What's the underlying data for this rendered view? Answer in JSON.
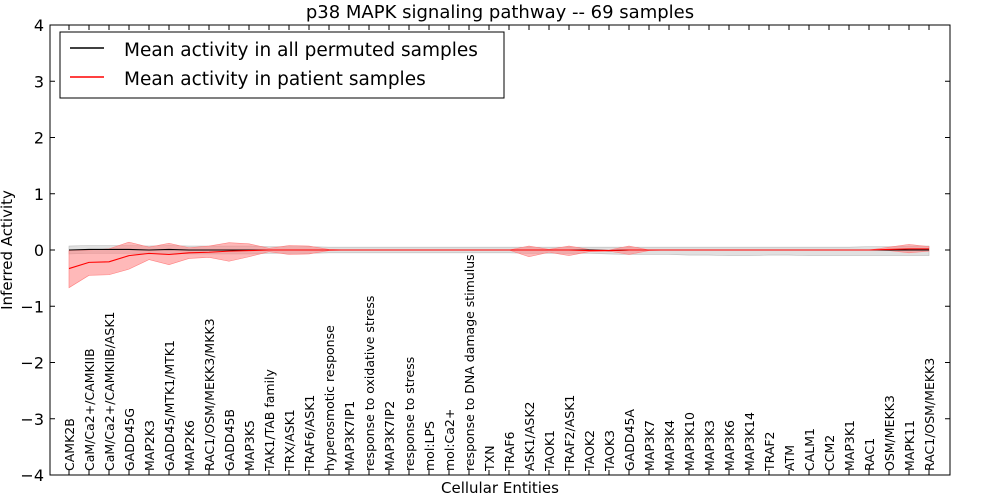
{
  "chart_data": {
    "type": "line",
    "title": "p38 MAPK signaling pathway -- 69 samples",
    "xlabel": "Cellular Entities",
    "ylabel": "Inferred Activity",
    "ylim": [
      -4,
      4
    ],
    "yticks": [
      "4",
      "3",
      "2",
      "1",
      "0",
      "−1",
      "−2",
      "−3",
      "−4"
    ],
    "ytick_values": [
      4,
      3,
      2,
      1,
      0,
      -1,
      -2,
      -3,
      -4
    ],
    "grid": false,
    "legend_position": "top-left",
    "categories": [
      "CAMK2B",
      "CaM/Ca2+/CAMKIIB",
      "CaM/Ca2+/CAMKIIB/ASK1",
      "GADD45G",
      "MAP2K3",
      "GADD45/MTK1/MTK1",
      "MAP2K6",
      "RAC1/OSM/MEKK3/MKK3",
      "GADD45B",
      "MAP3K5",
      "TAK1/TAB family",
      "TRX/ASK1",
      "TRAF6/ASK1",
      "hyperosmotic response",
      "MAP3K7IP1",
      "response to oxidative stress",
      "MAP3K7IP2",
      "response to stress",
      "mol:LPS",
      "mol:Ca2+",
      "response to DNA damage stimulus",
      "TXN",
      "TRAF6",
      "ASK1/ASK2",
      "TAOK1",
      "TRAF2/ASK1",
      "TAOK2",
      "TAOK3",
      "GADD45A",
      "MAP3K7",
      "MAP3K4",
      "MAP3K10",
      "MAP3K3",
      "MAP3K6",
      "MAP3K14",
      "TRAF2",
      "ATM",
      "CALM1",
      "CCM2",
      "MAP3K1",
      "RAC1",
      "OSM/MEKK3",
      "MAPK11",
      "RAC1/OSM/MEKK3"
    ],
    "series": [
      {
        "name": "Mean activity in all permuted samples",
        "color": "#000000",
        "band_color": "#bbbbbb",
        "values": [
          0.0,
          0.01,
          0.01,
          0.01,
          0.0,
          0.01,
          0.0,
          0.0,
          0.0,
          0.0,
          0.0,
          0.0,
          0.0,
          0.0,
          0.0,
          0.0,
          0.0,
          0.0,
          0.0,
          0.0,
          0.0,
          0.0,
          0.0,
          0.0,
          0.0,
          0.0,
          0.0,
          -0.01,
          0.0,
          0.0,
          0.0,
          0.0,
          0.0,
          0.0,
          0.0,
          0.0,
          0.0,
          0.0,
          0.0,
          0.0,
          0.0,
          0.0,
          0.0,
          0.0
        ],
        "band_upper": [
          0.07,
          0.08,
          0.08,
          0.08,
          0.07,
          0.08,
          0.07,
          0.07,
          0.07,
          0.07,
          0.06,
          0.06,
          0.06,
          0.05,
          0.05,
          0.05,
          0.05,
          0.05,
          0.05,
          0.05,
          0.05,
          0.05,
          0.05,
          0.05,
          0.05,
          0.05,
          0.05,
          0.05,
          0.05,
          0.05,
          0.05,
          0.05,
          0.05,
          0.05,
          0.05,
          0.05,
          0.05,
          0.05,
          0.05,
          0.05,
          0.06,
          0.06,
          0.07,
          0.07
        ],
        "band_lower": [
          -0.07,
          -0.06,
          -0.06,
          -0.06,
          -0.07,
          -0.06,
          -0.07,
          -0.07,
          -0.07,
          -0.07,
          -0.06,
          -0.06,
          -0.06,
          -0.05,
          -0.05,
          -0.05,
          -0.05,
          -0.05,
          -0.05,
          -0.05,
          -0.05,
          -0.05,
          -0.05,
          -0.06,
          -0.06,
          -0.06,
          -0.06,
          -0.07,
          -0.08,
          -0.08,
          -0.08,
          -0.09,
          -0.09,
          -0.1,
          -0.1,
          -0.09,
          -0.09,
          -0.1,
          -0.1,
          -0.1,
          -0.1,
          -0.1,
          -0.1,
          -0.1
        ]
      },
      {
        "name": "Mean activity in patient samples",
        "color": "#ff0000",
        "band_color": "#ff8080",
        "values": [
          -0.33,
          -0.22,
          -0.21,
          -0.1,
          -0.06,
          -0.08,
          -0.05,
          -0.04,
          -0.02,
          -0.01,
          0.0,
          0.0,
          0.0,
          0.0,
          0.0,
          0.0,
          0.0,
          0.0,
          0.0,
          0.0,
          0.0,
          0.0,
          0.0,
          0.0,
          0.0,
          0.0,
          -0.01,
          -0.01,
          0.0,
          0.0,
          0.0,
          0.0,
          0.0,
          0.0,
          0.0,
          0.0,
          0.0,
          0.0,
          0.0,
          0.0,
          0.0,
          0.01,
          0.02,
          0.02
        ],
        "band_upper": [
          -0.01,
          0.0,
          0.02,
          0.14,
          0.05,
          0.12,
          0.04,
          0.07,
          0.13,
          0.11,
          0.03,
          0.08,
          0.07,
          0.01,
          0.0,
          0.0,
          0.0,
          0.0,
          0.0,
          0.0,
          0.0,
          0.0,
          0.0,
          0.07,
          0.01,
          0.07,
          0.01,
          0.0,
          0.07,
          0.0,
          0.0,
          0.0,
          0.0,
          0.0,
          0.0,
          0.0,
          0.0,
          0.0,
          0.0,
          0.0,
          0.0,
          0.05,
          0.1,
          0.06
        ],
        "band_lower": [
          -0.67,
          -0.45,
          -0.44,
          -0.34,
          -0.17,
          -0.26,
          -0.15,
          -0.13,
          -0.2,
          -0.12,
          -0.03,
          -0.08,
          -0.07,
          -0.01,
          0.0,
          0.0,
          0.0,
          0.0,
          0.0,
          0.0,
          0.0,
          0.0,
          0.0,
          -0.12,
          -0.04,
          -0.1,
          -0.03,
          -0.02,
          -0.08,
          -0.01,
          0.0,
          0.0,
          0.0,
          0.0,
          0.0,
          0.0,
          0.0,
          0.0,
          0.0,
          0.0,
          0.0,
          -0.01,
          -0.05,
          -0.02
        ]
      }
    ]
  }
}
